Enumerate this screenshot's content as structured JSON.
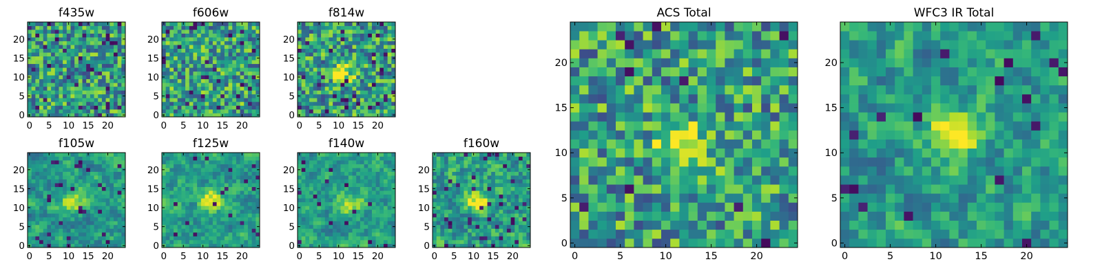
{
  "colormap": "viridis",
  "color_range": [
    "#440154",
    "#fde725"
  ],
  "chart_data": [
    {
      "type": "heatmap",
      "title": "f435w",
      "grid": [
        25,
        25
      ],
      "xticks": [
        "0",
        "5",
        "10",
        "15",
        "20"
      ],
      "yticks": [
        "0",
        "5",
        "10",
        "15",
        "20"
      ],
      "xlim": [
        0,
        25
      ],
      "ylim": [
        0,
        25
      ],
      "bright_center": null,
      "dark_fraction": 0.05,
      "smoothness": 0.0,
      "mean": 0.58
    },
    {
      "type": "heatmap",
      "title": "f606w",
      "grid": [
        25,
        25
      ],
      "xticks": [
        "0",
        "5",
        "10",
        "15",
        "20"
      ],
      "yticks": [
        "0",
        "5",
        "10",
        "15",
        "20"
      ],
      "xlim": [
        0,
        25
      ],
      "ylim": [
        0,
        25
      ],
      "bright_center": null,
      "dark_fraction": 0.05,
      "smoothness": 0.0,
      "mean": 0.62
    },
    {
      "type": "heatmap",
      "title": "f814w",
      "grid": [
        25,
        25
      ],
      "xticks": [
        "0",
        "5",
        "10",
        "15",
        "20"
      ],
      "yticks": [
        "0",
        "5",
        "10",
        "15",
        "20"
      ],
      "xlim": [
        0,
        25
      ],
      "ylim": [
        0,
        25
      ],
      "bright_center": [
        11,
        11
      ],
      "dark_fraction": 0.04,
      "smoothness": 0.0,
      "mean": 0.6
    },
    {
      "type": "heatmap",
      "title": "f105w",
      "grid": [
        25,
        25
      ],
      "xticks": [
        "0",
        "5",
        "10",
        "15",
        "20"
      ],
      "yticks": [
        "0",
        "5",
        "10",
        "15",
        "20"
      ],
      "xlim": [
        0,
        25
      ],
      "ylim": [
        0,
        25
      ],
      "bright_center": [
        11,
        11
      ],
      "dark_fraction": 0.03,
      "smoothness": 0.6,
      "mean": 0.58
    },
    {
      "type": "heatmap",
      "title": "f125w",
      "grid": [
        25,
        25
      ],
      "xticks": [
        "0",
        "5",
        "10",
        "15",
        "20"
      ],
      "yticks": [
        "0",
        "5",
        "10",
        "15",
        "20"
      ],
      "xlim": [
        0,
        25
      ],
      "ylim": [
        0,
        25
      ],
      "bright_center": [
        12,
        12
      ],
      "dark_fraction": 0.03,
      "smoothness": 0.6,
      "mean": 0.62
    },
    {
      "type": "heatmap",
      "title": "f140w",
      "grid": [
        25,
        25
      ],
      "xticks": [
        "0",
        "5",
        "10",
        "15",
        "20"
      ],
      "yticks": [
        "0",
        "5",
        "10",
        "15",
        "20"
      ],
      "xlim": [
        0,
        25
      ],
      "ylim": [
        0,
        25
      ],
      "bright_center": [
        13,
        11
      ],
      "dark_fraction": 0.03,
      "smoothness": 0.6,
      "mean": 0.6
    },
    {
      "type": "heatmap",
      "title": "f160w",
      "grid": [
        25,
        25
      ],
      "xticks": [
        "0",
        "5",
        "10",
        "15",
        "20"
      ],
      "yticks": [
        "0",
        "5",
        "10",
        "15",
        "20"
      ],
      "xlim": [
        0,
        25
      ],
      "ylim": [
        0,
        25
      ],
      "bright_center": [
        11,
        12
      ],
      "dark_fraction": 0.05,
      "smoothness": 0.4,
      "mean": 0.58
    },
    {
      "type": "heatmap",
      "title": "ACS Total",
      "grid": [
        25,
        25
      ],
      "xticks": [
        "0",
        "5",
        "10",
        "15",
        "20"
      ],
      "yticks": [
        "0",
        "5",
        "10",
        "15",
        "20"
      ],
      "xlim": [
        0,
        25
      ],
      "ylim": [
        0,
        25
      ],
      "bright_center": [
        12,
        11
      ],
      "dark_fraction": 0.03,
      "smoothness": 0.0,
      "mean": 0.6
    },
    {
      "type": "heatmap",
      "title": "WFC3 IR Total",
      "grid": [
        25,
        25
      ],
      "xticks": [
        "0",
        "5",
        "10",
        "15",
        "20"
      ],
      "yticks": [
        "0",
        "5",
        "10",
        "15",
        "20"
      ],
      "xlim": [
        0,
        25
      ],
      "ylim": [
        0,
        25
      ],
      "bright_center": [
        12,
        12
      ],
      "dark_fraction": 0.03,
      "smoothness": 0.5,
      "mean": 0.58
    }
  ]
}
